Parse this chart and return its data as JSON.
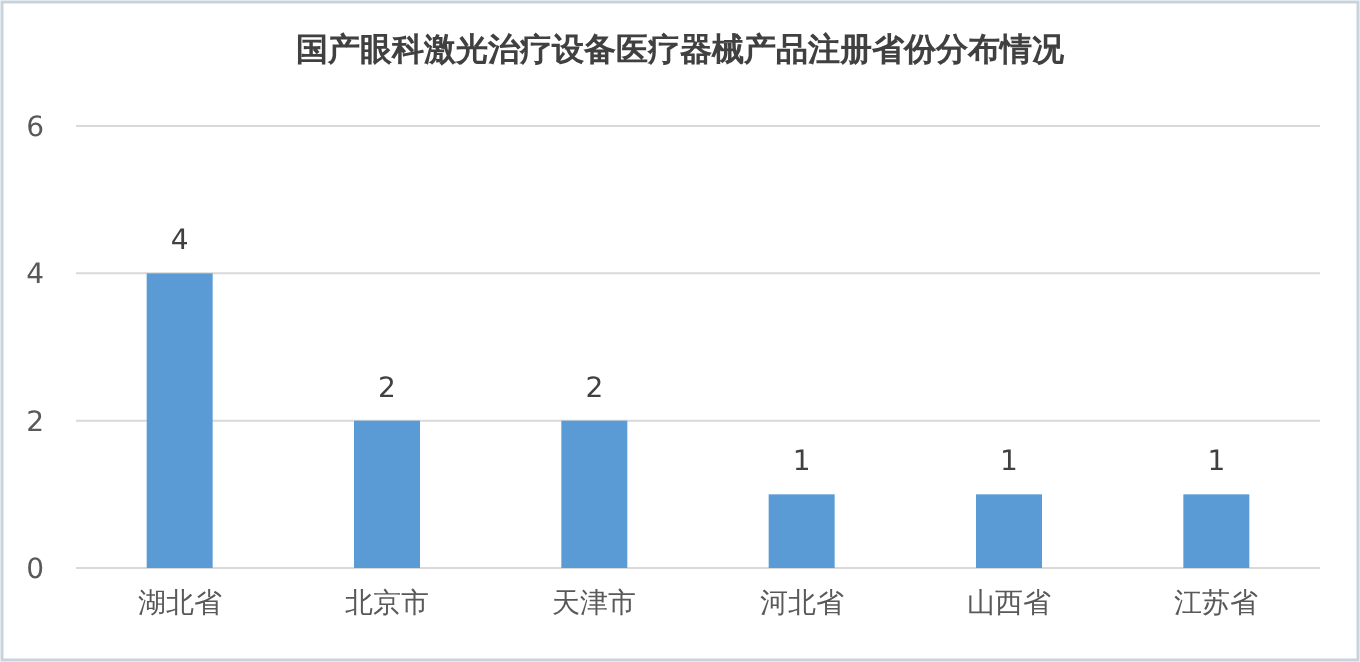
{
  "chart_data": {
    "type": "bar",
    "title": "国产眼科激光治疗设备医疗器械产品注册省份分布情况",
    "categories": [
      "湖北省",
      "北京市",
      "天津市",
      "河北省",
      "山西省",
      "江苏省"
    ],
    "values": [
      4,
      2,
      2,
      1,
      1,
      1
    ],
    "color": "#5b9bd5",
    "ylim": [
      0,
      6
    ],
    "yticks": [
      0,
      2,
      4,
      6
    ],
    "grid": "y",
    "data_labels": true
  }
}
